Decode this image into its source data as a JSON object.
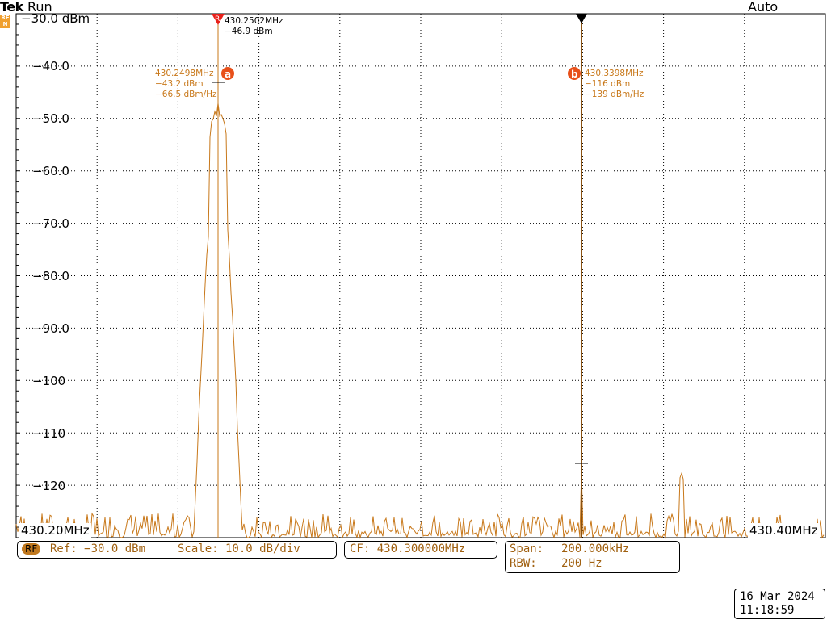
{
  "header": {
    "logo": "Tek",
    "state": "Run",
    "trigger_mode": "Auto",
    "rf_badge": "RF N"
  },
  "display": {
    "ref_level_label": "−30.0 dBm",
    "y_labels": [
      "−40.0",
      "−50.0",
      "−60.0",
      "−70.0",
      "−80.0",
      "−90.0",
      "−100",
      "−110",
      "−120"
    ],
    "start_freq": "430.20MHz",
    "stop_freq": "430.40MHz",
    "colors": {
      "trace": "#c8781a",
      "marker_badge": "#e8501a",
      "grid": "#000000"
    }
  },
  "markers": {
    "reference": {
      "freq": "430.2502MHz",
      "level": "−46.9 dBm"
    },
    "a": {
      "label": "a",
      "freq": "430.2498MHz",
      "level": "−43.2 dBm",
      "density": "−66.5 dBm/Hz"
    },
    "b": {
      "label": "b",
      "freq": "430.3398MHz",
      "level": "−116 dBm",
      "density": "−139 dBm/Hz"
    }
  },
  "status": {
    "rf_label": "RF",
    "ref": "Ref: −30.0 dBm",
    "scale": "Scale: 10.0 dB/div",
    "cf": "CF: 430.300000MHz",
    "span_label": "Span:",
    "span_value": "200.000kHz",
    "rbw_label": "RBW:",
    "rbw_value": "200 Hz"
  },
  "datetime": {
    "date": "16 Mar 2024",
    "time": "11:18:59"
  }
}
